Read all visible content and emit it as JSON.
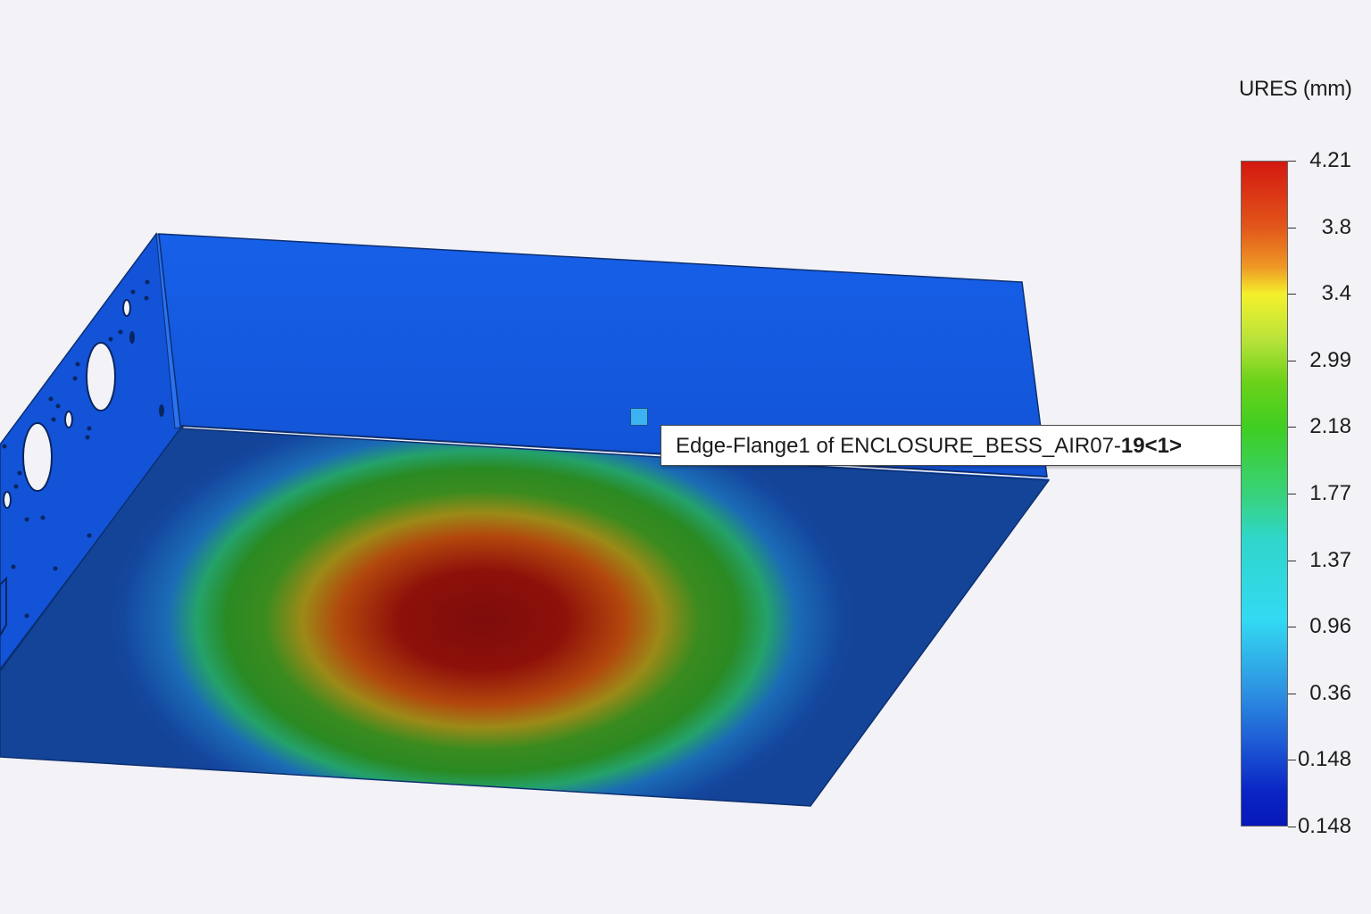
{
  "legend": {
    "title": "URES (mm)",
    "colors": {
      "max": "#d41810",
      "orange": "#ef9a25",
      "yellow": "#f4f12c",
      "green": "#3fce22",
      "cyan": "#33d9f2",
      "blue": "#1c57d4",
      "min": "#0818b8"
    },
    "ticks": [
      "4.21",
      "3.8",
      "3.4",
      "2.99",
      "2.18",
      "1.77",
      "1.37",
      "0.96",
      "0.36",
      "0.148",
      "0.148"
    ]
  },
  "tooltip": {
    "prefix": "Edge-Flange1 of ENCLOSURE_BESS_AIR07-",
    "suffix": "19<1>"
  },
  "model": {
    "color": "#1559e0",
    "edge_color": "#1a3f8a"
  }
}
